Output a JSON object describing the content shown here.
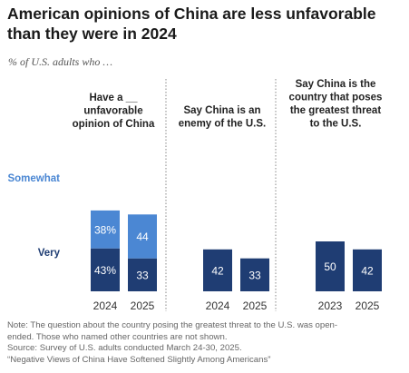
{
  "title": "American opinions of China are less unfavorable than they were in 2024",
  "subtitle": "% of U.S. adults who …",
  "colors": {
    "very": "#1f3d73",
    "somewhat": "#4b87d3",
    "somewhat_label": "#4b87d3",
    "very_label": "#1f3d73",
    "divider": "#888888"
  },
  "chart_data": [
    {
      "type": "bar",
      "stacked": true,
      "title": "Have a __ unfavorable opinion of China",
      "categories": [
        "2024",
        "2025"
      ],
      "series": [
        {
          "name": "Very",
          "values": [
            43,
            33
          ],
          "labels": [
            "43%",
            "33"
          ]
        },
        {
          "name": "Somewhat",
          "values": [
            38,
            44
          ],
          "labels": [
            "38%",
            "44"
          ]
        }
      ]
    },
    {
      "type": "bar",
      "title": "Say China is an enemy of the U.S.",
      "categories": [
        "2024",
        "2025"
      ],
      "series": [
        {
          "name": "Very",
          "values": [
            42,
            33
          ],
          "labels": [
            "42",
            "33"
          ]
        }
      ]
    },
    {
      "type": "bar",
      "title": "Say China is the country that poses the greatest threat to the U.S.",
      "categories": [
        "2023",
        "2025"
      ],
      "series": [
        {
          "name": "Very",
          "values": [
            50,
            42
          ],
          "labels": [
            "50",
            "42"
          ]
        }
      ]
    }
  ],
  "notes": [
    "Note: The question about the country posing the greatest threat to the U.S. was open-",
    "ended. Those who named other countries are not shown.",
    "Source: Survey of U.S. adults conducted March 24-30, 2025.",
    "“Negative Views of China Have Softened Slightly Among Americans”"
  ]
}
